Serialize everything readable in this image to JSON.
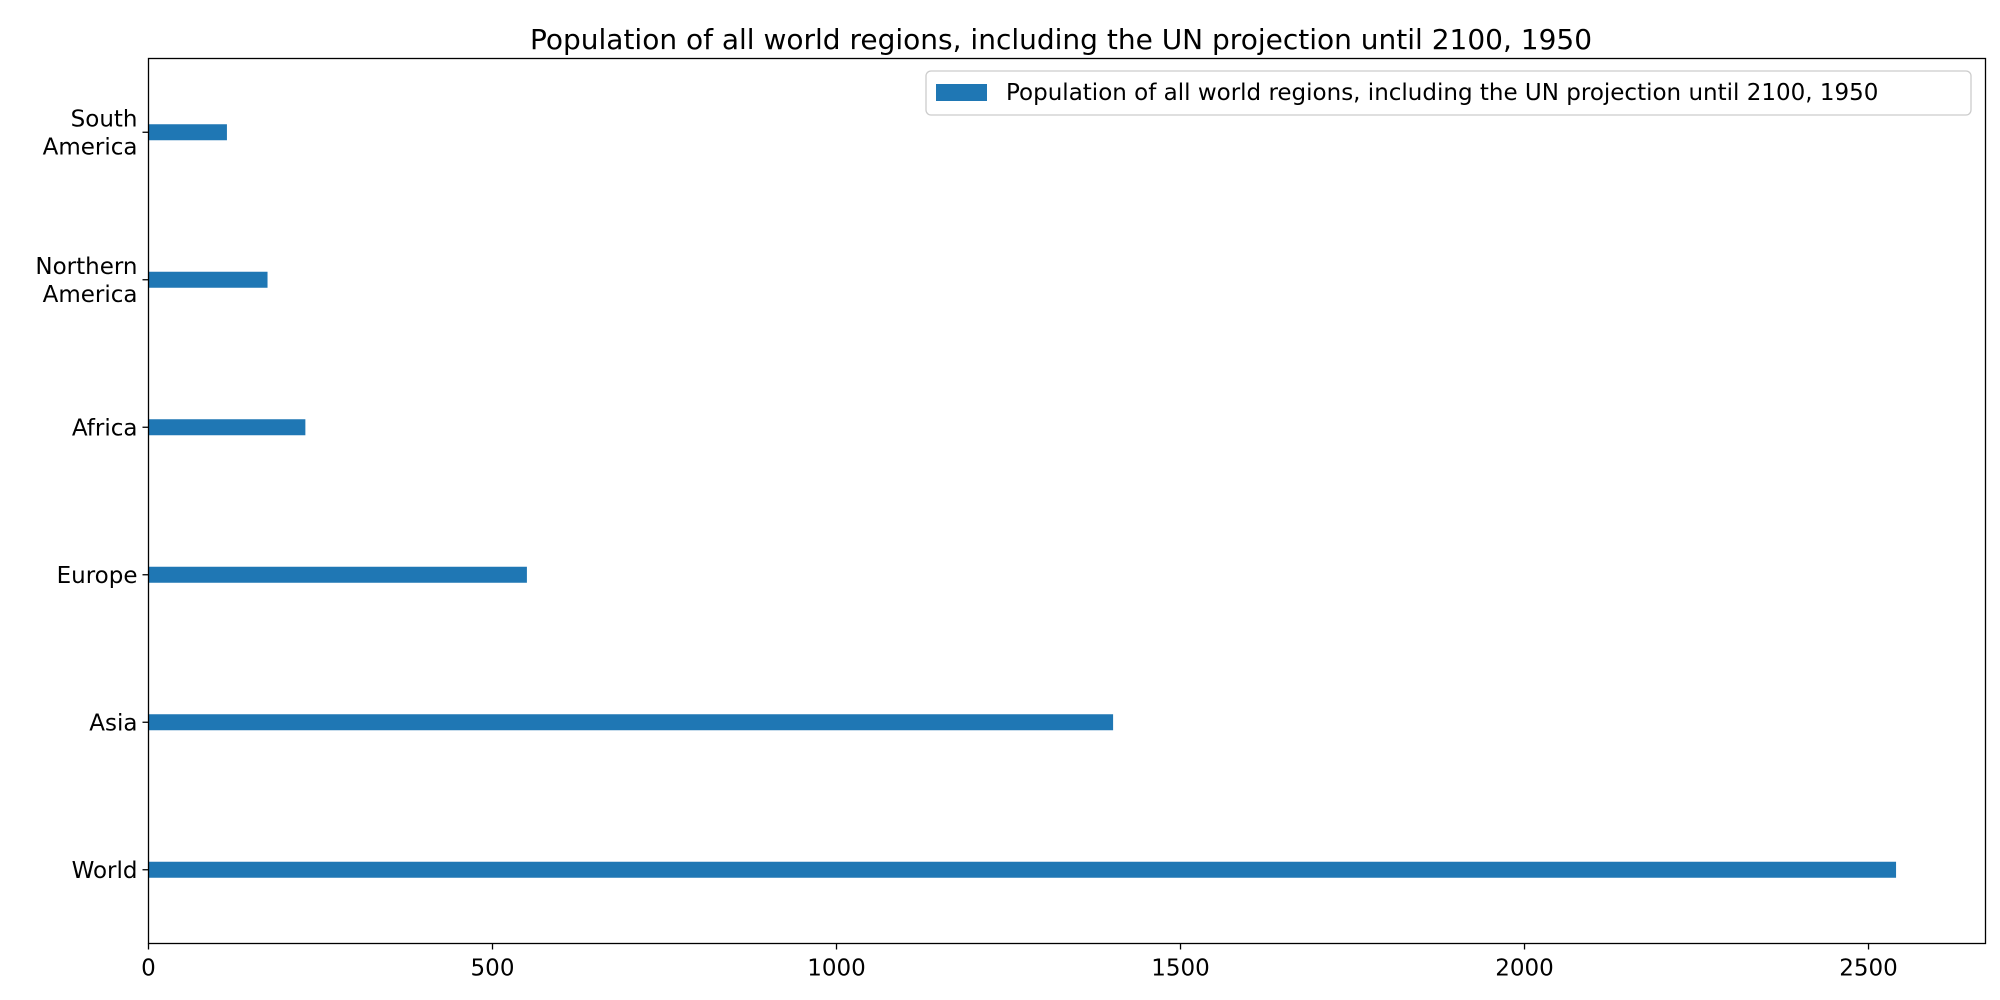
{
  "chart_data": {
    "type": "bar",
    "orientation": "horizontal",
    "title": "Population of all world regions, including the UN projection until 2100, 1950",
    "categories": [
      "World",
      "Asia",
      "Europe",
      "Africa",
      "Northern America",
      "South America"
    ],
    "category_label_lines": [
      [
        "World"
      ],
      [
        "Asia"
      ],
      [
        "Europe"
      ],
      [
        "Africa"
      ],
      [
        "Northern",
        "America"
      ],
      [
        "South",
        "America"
      ]
    ],
    "series": [
      {
        "name": "Population of all world regions, including the UN projection until 2100, 1950",
        "values": [
          2540,
          1402,
          550,
          228,
          173,
          114
        ],
        "color": "#1f77b4"
      }
    ],
    "xlabel": "",
    "ylabel": "",
    "xlim": [
      0,
      2670
    ],
    "xticks": [
      0,
      500,
      1000,
      1500,
      2000,
      2500
    ],
    "grid": false,
    "legend": {
      "position": "top-right"
    }
  }
}
